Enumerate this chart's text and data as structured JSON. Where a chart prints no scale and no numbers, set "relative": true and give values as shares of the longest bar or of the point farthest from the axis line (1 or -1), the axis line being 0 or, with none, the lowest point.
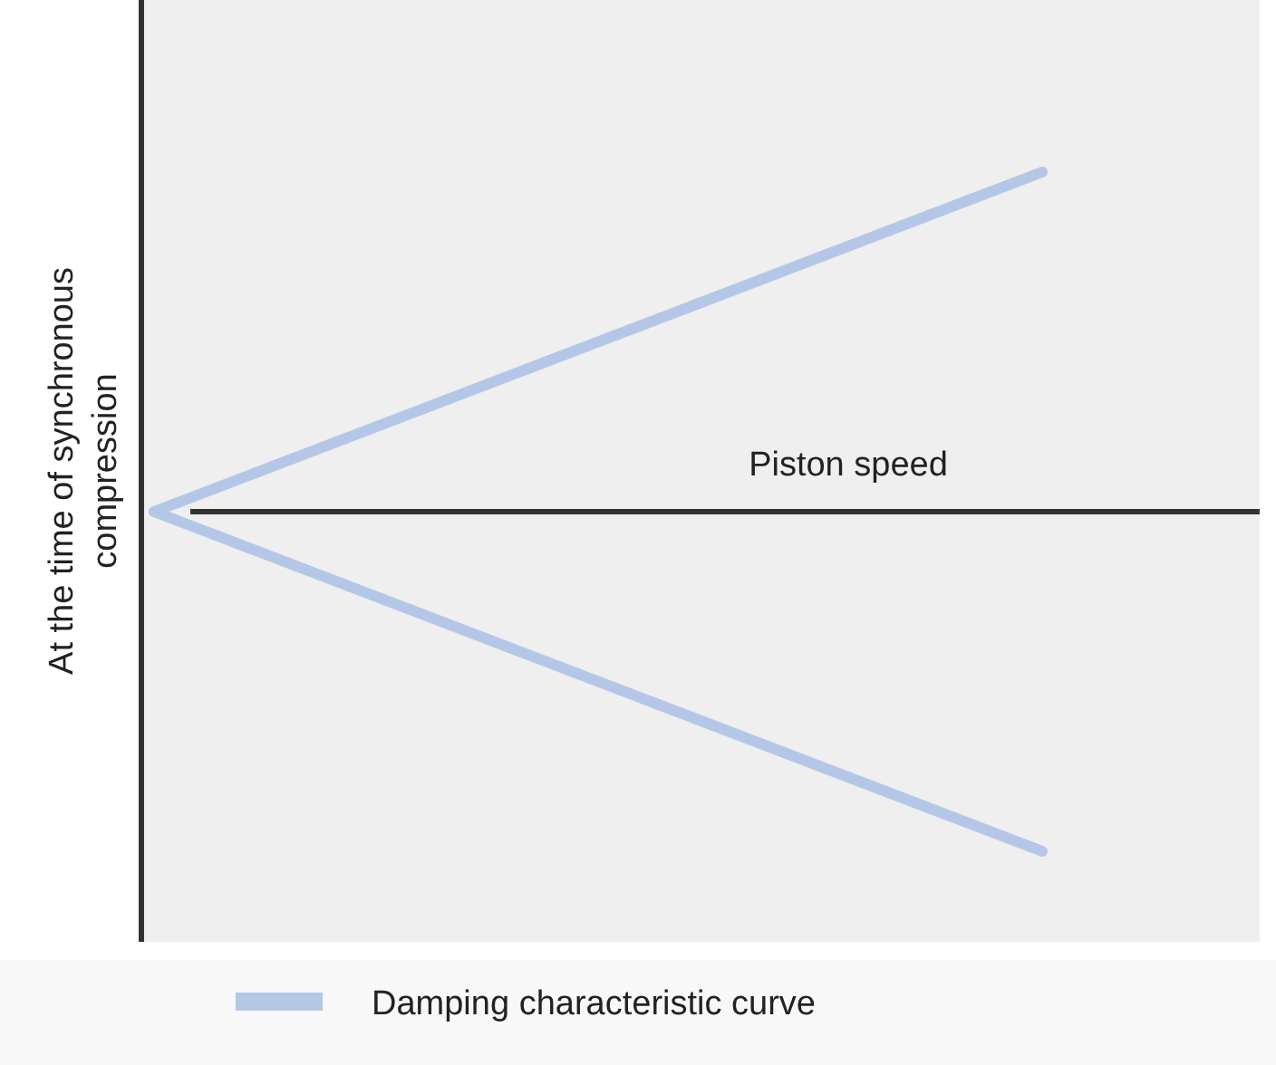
{
  "chart_data": {
    "type": "line",
    "relative": true,
    "xlabel": "Piston speed",
    "ylabel": "At the time of synchronous compression",
    "categories": [
      null,
      null
    ],
    "legend": "bottom left",
    "series": [
      {
        "name": "Damping characteristic curve",
        "color": "#b4c7e7",
        "values": [
          0,
          1
        ]
      },
      {
        "color": "#b4c7e7",
        "values": [
          0,
          -1
        ]
      }
    ]
  }
}
